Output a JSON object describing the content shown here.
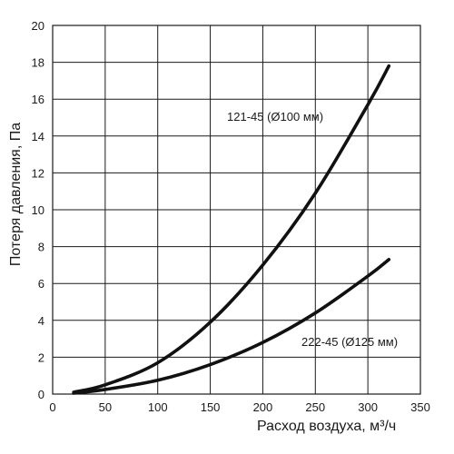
{
  "chart_data": {
    "type": "line",
    "title": "",
    "xlabel": "Расход воздуха, м³/ч",
    "ylabel": "Потеря давления, Па",
    "xlim": [
      0,
      350
    ],
    "ylim": [
      0,
      20
    ],
    "x_ticks": [
      "0",
      "50",
      "100",
      "150",
      "200",
      "250",
      "300",
      "350"
    ],
    "y_ticks": [
      "0",
      "2",
      "4",
      "6",
      "8",
      "10",
      "12",
      "14",
      "16",
      "18",
      "20"
    ],
    "grid": true,
    "series": [
      {
        "name": "121-45 (Ø100 мм)",
        "x": [
          20,
          50,
          100,
          150,
          200,
          250,
          300,
          320
        ],
        "y": [
          0.1,
          0.5,
          1.7,
          3.9,
          7.0,
          10.9,
          15.7,
          17.8
        ]
      },
      {
        "name": "222-45 (Ø125 мм)",
        "x": [
          20,
          50,
          100,
          150,
          200,
          250,
          300,
          320
        ],
        "y": [
          0.05,
          0.25,
          0.75,
          1.6,
          2.8,
          4.4,
          6.4,
          7.3
        ]
      }
    ]
  }
}
